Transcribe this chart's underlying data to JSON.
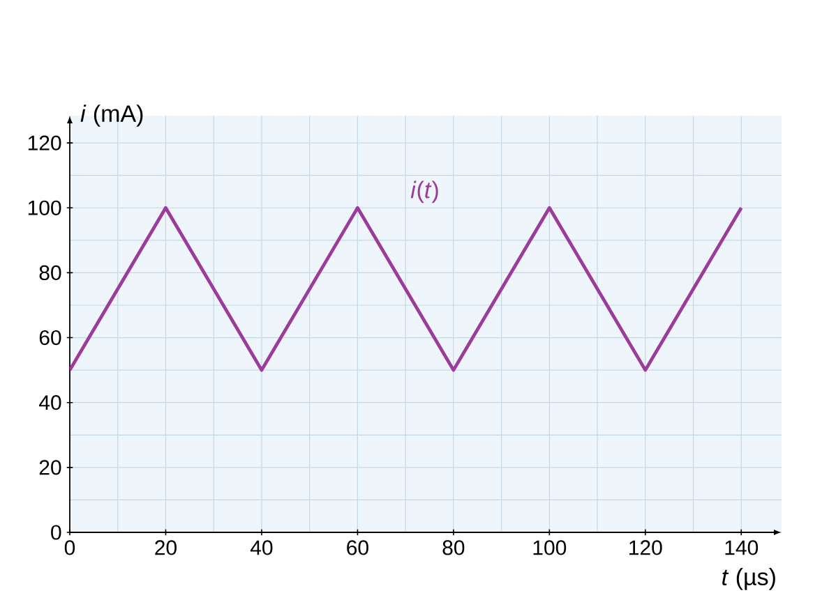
{
  "chart_data": {
    "type": "line",
    "xlabel": "*t* (µs)",
    "ylabel": "*i* (mA)",
    "x": [
      0,
      20,
      40,
      60,
      80,
      100,
      120,
      140
    ],
    "series": [
      {
        "name": "*i*(*t*)",
        "color": "#9b3c9b",
        "values": [
          50,
          100,
          50,
          100,
          50,
          100,
          50,
          100
        ]
      }
    ],
    "xlim": [
      0,
      140
    ],
    "ylim": [
      0,
      120
    ],
    "xticks": [
      0,
      20,
      40,
      60,
      80,
      100,
      120,
      140
    ],
    "yticks": [
      0,
      20,
      40,
      60,
      80,
      100,
      120
    ],
    "grid": true,
    "marker": "none",
    "line_style": "solid",
    "legend": false
  }
}
